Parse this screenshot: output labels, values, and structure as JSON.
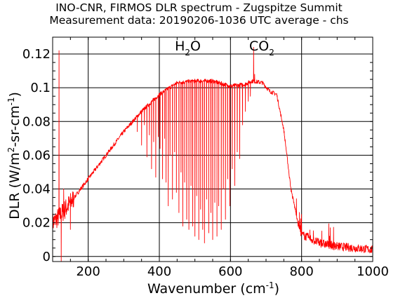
{
  "chart_data": {
    "type": "line",
    "title": "INO-CNR, FIRMOS DLR spectrum - Zugspitze Summit",
    "subtitle": "Measurement data: 20190206-1036 UTC average - chs",
    "xlabel": {
      "base": "Wavenumber (cm",
      "sup": "-1",
      "end": ")"
    },
    "ylabel": {
      "p1": "DLR (W/m",
      "sup1": "2",
      "p2": "-sr-cm",
      "sup2": "-1",
      "end": ")"
    },
    "xlim": [
      100,
      1000
    ],
    "ylim": [
      -0.003,
      0.13
    ],
    "xticks": [
      "200",
      "400",
      "600",
      "800",
      "1000"
    ],
    "yticks": [
      "0",
      "0.02",
      "0.04",
      "0.06",
      "0.08",
      "0.1",
      "0.12"
    ],
    "grid": true,
    "color": "#ff0000",
    "annotations": [
      {
        "main": "H",
        "sub": "2",
        "tail": "O",
        "x": 480,
        "y": 0.122
      },
      {
        "main": "CO",
        "sub": "2",
        "x": 688,
        "y": 0.122
      }
    ],
    "series": [
      {
        "envelope": [
          [
            100,
            0.02
          ],
          [
            120,
            0.024
          ],
          [
            150,
            0.032
          ],
          [
            200,
            0.046
          ],
          [
            250,
            0.06
          ],
          [
            300,
            0.074
          ],
          [
            350,
            0.086
          ],
          [
            400,
            0.096
          ],
          [
            450,
            0.103
          ],
          [
            500,
            0.104
          ],
          [
            550,
            0.104
          ],
          [
            600,
            0.101
          ],
          [
            640,
            0.102
          ],
          [
            660,
            0.104
          ],
          [
            690,
            0.103
          ],
          [
            710,
            0.098
          ],
          [
            730,
            0.096
          ],
          [
            750,
            0.075
          ],
          [
            770,
            0.04
          ],
          [
            790,
            0.02
          ],
          [
            800,
            0.013
          ],
          [
            850,
            0.008
          ],
          [
            900,
            0.006
          ],
          [
            950,
            0.005
          ],
          [
            1000,
            0.004
          ]
        ],
        "absorption_lines": [
          [
            338,
            0.074
          ],
          [
            350,
            0.066
          ],
          [
            358,
            0.078
          ],
          [
            365,
            0.059
          ],
          [
            372,
            0.072
          ],
          [
            378,
            0.052
          ],
          [
            384,
            0.068
          ],
          [
            390,
            0.047
          ],
          [
            397,
            0.071
          ],
          [
            402,
            0.064
          ],
          [
            409,
            0.046
          ],
          [
            415,
            0.07
          ],
          [
            419,
            0.044
          ],
          [
            425,
            0.03
          ],
          [
            430,
            0.06
          ],
          [
            437,
            0.034
          ],
          [
            443,
            0.062
          ],
          [
            448,
            0.038
          ],
          [
            455,
            0.026
          ],
          [
            461,
            0.05
          ],
          [
            466,
            0.018
          ],
          [
            471,
            0.044
          ],
          [
            477,
            0.022
          ],
          [
            483,
            0.016
          ],
          [
            489,
            0.042
          ],
          [
            494,
            0.018
          ],
          [
            500,
            0.012
          ],
          [
            505,
            0.036
          ],
          [
            511,
            0.01
          ],
          [
            516,
            0.028
          ],
          [
            522,
            0.016
          ],
          [
            527,
            0.008
          ],
          [
            533,
            0.034
          ],
          [
            539,
            0.014
          ],
          [
            545,
            0.026
          ],
          [
            550,
            0.01
          ],
          [
            556,
            0.032
          ],
          [
            562,
            0.012
          ],
          [
            567,
            0.03
          ],
          [
            574,
            0.016
          ],
          [
            580,
            0.04
          ],
          [
            586,
            0.022
          ],
          [
            592,
            0.046
          ],
          [
            598,
            0.03
          ],
          [
            605,
            0.052
          ],
          [
            612,
            0.042
          ],
          [
            619,
            0.062
          ],
          [
            626,
            0.058
          ],
          [
            634,
            0.078
          ],
          [
            642,
            0.086
          ],
          [
            650,
            0.092
          ],
          [
            656,
            0.095
          ]
        ],
        "spikes": [
          [
            118,
            0.122
          ],
          [
            124,
            -0.003
          ],
          [
            131,
            0.04
          ],
          [
            150,
            0.016
          ],
          [
            665,
            0.124
          ],
          [
            668,
            0.108
          ]
        ]
      }
    ]
  }
}
